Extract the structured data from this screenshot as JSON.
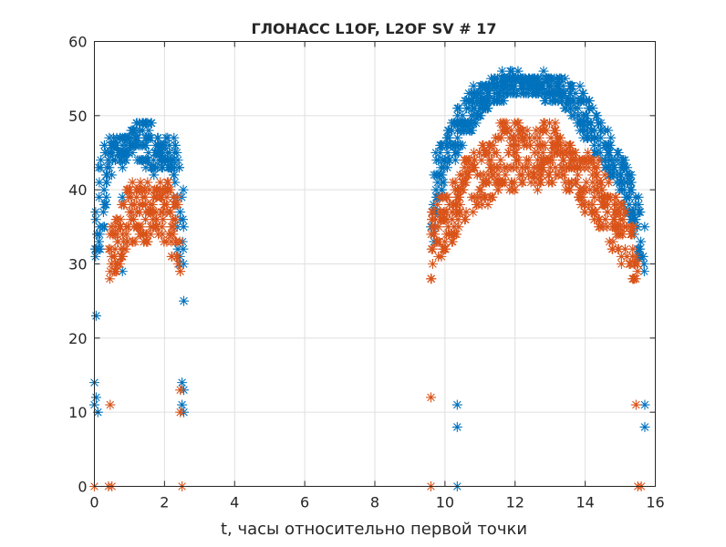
{
  "chart_data": {
    "type": "scatter",
    "title": "ГЛОНАСС L1OF, L2OF SV # 17",
    "xlabel": "t, часы относительно первой точки",
    "ylabel": "",
    "xlim": [
      0,
      16
    ],
    "ylim": [
      0,
      60
    ],
    "xticks": [
      0,
      2,
      4,
      6,
      8,
      10,
      12,
      14,
      16
    ],
    "yticks": [
      0,
      10,
      20,
      30,
      40,
      50,
      60
    ],
    "grid": true,
    "legend": null,
    "marker": "asterisk",
    "series": [
      {
        "name": "L1OF",
        "color": "#0072BD",
        "envelope": [
          {
            "x": 0.0,
            "lo": 27,
            "hi": 36
          },
          {
            "x": 0.2,
            "lo": 30,
            "hi": 47
          },
          {
            "x": 0.4,
            "lo": 42,
            "hi": 47
          },
          {
            "x": 0.7,
            "lo": 43,
            "hi": 47
          },
          {
            "x": 1.0,
            "lo": 44,
            "hi": 48
          },
          {
            "x": 1.3,
            "lo": 44,
            "hi": 50
          },
          {
            "x": 1.6,
            "lo": 42,
            "hi": 49
          },
          {
            "x": 1.9,
            "lo": 43,
            "hi": 47
          },
          {
            "x": 2.2,
            "lo": 42,
            "hi": 47
          },
          {
            "x": 2.4,
            "lo": 30,
            "hi": 47
          },
          {
            "x": 2.55,
            "lo": 29,
            "hi": 40
          },
          {
            "x": 9.6,
            "lo": 29,
            "hi": 45
          },
          {
            "x": 9.8,
            "lo": 38,
            "hi": 46
          },
          {
            "x": 10.0,
            "lo": 42,
            "hi": 48
          },
          {
            "x": 10.4,
            "lo": 45,
            "hi": 51
          },
          {
            "x": 10.8,
            "lo": 48,
            "hi": 54
          },
          {
            "x": 11.2,
            "lo": 51,
            "hi": 55
          },
          {
            "x": 11.6,
            "lo": 52,
            "hi": 56
          },
          {
            "x": 12.0,
            "lo": 53,
            "hi": 56
          },
          {
            "x": 12.4,
            "lo": 53,
            "hi": 55
          },
          {
            "x": 12.8,
            "lo": 52,
            "hi": 56
          },
          {
            "x": 13.2,
            "lo": 52,
            "hi": 55
          },
          {
            "x": 13.6,
            "lo": 50,
            "hi": 55
          },
          {
            "x": 14.0,
            "lo": 47,
            "hi": 53
          },
          {
            "x": 14.4,
            "lo": 44,
            "hi": 50
          },
          {
            "x": 14.8,
            "lo": 41,
            "hi": 47
          },
          {
            "x": 15.2,
            "lo": 37,
            "hi": 44
          },
          {
            "x": 15.5,
            "lo": 32,
            "hi": 40
          },
          {
            "x": 15.7,
            "lo": 26,
            "hi": 36
          }
        ],
        "outliers": [
          {
            "x": 0.05,
            "y": 23
          },
          {
            "x": 0.0,
            "y": 14
          },
          {
            "x": 0.05,
            "y": 12
          },
          {
            "x": 0.0,
            "y": 11
          },
          {
            "x": 0.1,
            "y": 10
          },
          {
            "x": 0.8,
            "y": 29
          },
          {
            "x": 0.8,
            "y": 31
          },
          {
            "x": 0.8,
            "y": 39
          },
          {
            "x": 2.55,
            "y": 25
          },
          {
            "x": 2.5,
            "y": 14
          },
          {
            "x": 2.55,
            "y": 13
          },
          {
            "x": 2.5,
            "y": 11
          },
          {
            "x": 2.55,
            "y": 10
          },
          {
            "x": 10.35,
            "y": 11
          },
          {
            "x": 10.35,
            "y": 8
          },
          {
            "x": 10.35,
            "y": 0
          },
          {
            "x": 15.7,
            "y": 11
          },
          {
            "x": 15.7,
            "y": 8
          }
        ]
      },
      {
        "name": "L2OF",
        "color": "#D95319",
        "envelope": [
          {
            "x": 0.4,
            "lo": 27,
            "hi": 34
          },
          {
            "x": 0.7,
            "lo": 30,
            "hi": 37
          },
          {
            "x": 1.0,
            "lo": 32,
            "hi": 41
          },
          {
            "x": 1.3,
            "lo": 33,
            "hi": 41
          },
          {
            "x": 1.6,
            "lo": 33,
            "hi": 41
          },
          {
            "x": 1.9,
            "lo": 32,
            "hi": 41
          },
          {
            "x": 2.1,
            "lo": 33,
            "hi": 42
          },
          {
            "x": 2.3,
            "lo": 29,
            "hi": 41
          },
          {
            "x": 2.45,
            "lo": 27,
            "hi": 36
          },
          {
            "x": 9.6,
            "lo": 26,
            "hi": 38
          },
          {
            "x": 9.9,
            "lo": 30,
            "hi": 40
          },
          {
            "x": 10.3,
            "lo": 34,
            "hi": 42
          },
          {
            "x": 10.8,
            "lo": 37,
            "hi": 45
          },
          {
            "x": 11.2,
            "lo": 38,
            "hi": 46
          },
          {
            "x": 11.6,
            "lo": 40,
            "hi": 50
          },
          {
            "x": 12.0,
            "lo": 40,
            "hi": 49
          },
          {
            "x": 12.4,
            "lo": 40,
            "hi": 48
          },
          {
            "x": 12.8,
            "lo": 40,
            "hi": 50
          },
          {
            "x": 13.2,
            "lo": 41,
            "hi": 49
          },
          {
            "x": 13.6,
            "lo": 39,
            "hi": 46
          },
          {
            "x": 14.0,
            "lo": 37,
            "hi": 45
          },
          {
            "x": 14.4,
            "lo": 35,
            "hi": 44
          },
          {
            "x": 14.8,
            "lo": 32,
            "hi": 40
          },
          {
            "x": 15.2,
            "lo": 29,
            "hi": 37
          },
          {
            "x": 15.5,
            "lo": 27,
            "hi": 34
          }
        ],
        "outliers": [
          {
            "x": 0.45,
            "y": 11
          },
          {
            "x": 0.0,
            "y": 0
          },
          {
            "x": 0.4,
            "y": 0
          },
          {
            "x": 0.5,
            "y": 0
          },
          {
            "x": 2.45,
            "y": 13
          },
          {
            "x": 2.45,
            "y": 10
          },
          {
            "x": 2.5,
            "y": 0
          },
          {
            "x": 9.6,
            "y": 12
          },
          {
            "x": 9.6,
            "y": 0
          },
          {
            "x": 15.45,
            "y": 11
          },
          {
            "x": 15.5,
            "y": 0
          },
          {
            "x": 15.6,
            "y": 0
          }
        ]
      }
    ]
  }
}
